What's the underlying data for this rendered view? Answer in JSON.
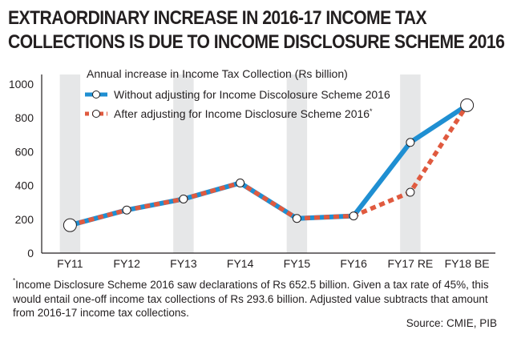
{
  "title_lines": [
    "EXTRAORDINARY INCREASE IN 2016-17 INCOME TAX",
    "COLLECTIONS IS DUE TO INCOME DISCLOSURE SCHEME 2016"
  ],
  "footnote": {
    "marker": "*",
    "text": "Income Disclosure Scheme 2016 saw declarations of Rs 652.5 billion. Given a tax rate of 45%, this would entail one-off income tax collections of Rs 293.6 billion. Adjusted value subtracts that amount from 2016-17 income tax collections."
  },
  "source": "Source: CMIE, PIB",
  "colors": {
    "series1": "#1f8fd2",
    "series2": "#e05a3f",
    "band": "#e6e7e8",
    "axis": "#231f20"
  },
  "chart_data": {
    "type": "line",
    "title": "Annual increase in Income Tax Collection (Rs billion)",
    "categories": [
      "FY11",
      "FY12",
      "FY13",
      "FY14",
      "FY15",
      "FY16",
      "FY17 RE",
      "FY18 BE"
    ],
    "series": [
      {
        "name": "Without adjusting for Income Discolosure Scheme 2016",
        "values": [
          165,
          255,
          320,
          415,
          205,
          220,
          655,
          875
        ]
      },
      {
        "name": "After adjusting for Income Disclosure Scheme 2016",
        "name_suffix": "*",
        "values": [
          165,
          255,
          320,
          415,
          205,
          220,
          360,
          875
        ]
      }
    ],
    "yticks": [
      0,
      200,
      400,
      600,
      800,
      1000
    ],
    "ylim": [
      0,
      1000
    ],
    "grid": false,
    "alternating_bands": true,
    "legend_position": "top-left"
  }
}
